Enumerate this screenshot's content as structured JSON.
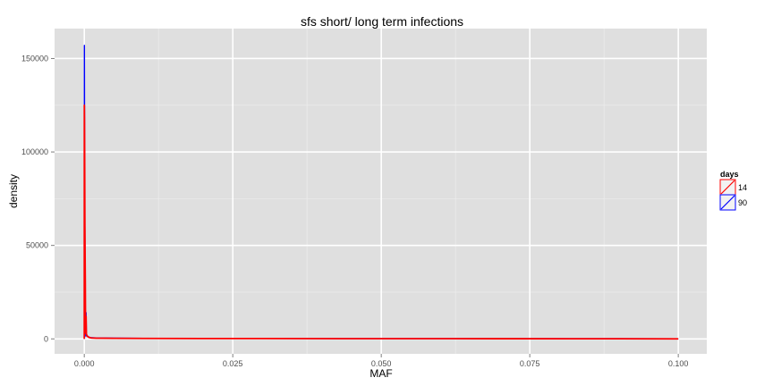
{
  "chart_data": {
    "type": "line",
    "title": "sfs short/ long term infections",
    "xlabel": "MAF",
    "ylabel": "density",
    "xlim": [
      -0.005,
      0.1048
    ],
    "ylim": [
      -8000,
      166000
    ],
    "x_ticks": [
      0.0,
      0.025,
      0.05,
      0.075,
      0.1
    ],
    "x_tick_labels": [
      "0.000",
      "0.025",
      "0.050",
      "0.075",
      "0.100"
    ],
    "y_ticks": [
      0,
      50000,
      100000,
      150000
    ],
    "y_tick_labels": [
      "0",
      "50000",
      "100000",
      "150000"
    ],
    "grid": true,
    "background": "#dfdfdf",
    "legend": {
      "title": "days",
      "placement": "right",
      "entries": [
        "14",
        "90"
      ]
    },
    "series": [
      {
        "name": "14",
        "color": "#ff0000",
        "points": [
          [
            0.0,
            0
          ],
          [
            1e-05,
            125000
          ],
          [
            3e-05,
            118000
          ],
          [
            6e-05,
            98000
          ],
          [
            0.0001,
            60000
          ],
          [
            0.00013,
            46000
          ],
          [
            0.00017,
            30000
          ],
          [
            0.0002,
            12000
          ],
          [
            0.00025,
            3000
          ],
          [
            0.0003,
            12000
          ],
          [
            0.00035,
            2500
          ],
          [
            0.0005,
            1500
          ],
          [
            0.0008,
            800
          ],
          [
            0.0012,
            500
          ],
          [
            0.002,
            400
          ],
          [
            0.005,
            300
          ],
          [
            0.01,
            250
          ],
          [
            0.02,
            200
          ],
          [
            0.03,
            170
          ],
          [
            0.05,
            130
          ],
          [
            0.07,
            100
          ],
          [
            0.09,
            60
          ],
          [
            0.1,
            0
          ]
        ]
      },
      {
        "name": "90",
        "color": "#0000ff",
        "points": [
          [
            0.0,
            0
          ],
          [
            2e-05,
            157000
          ],
          [
            5e-05,
            105000
          ],
          [
            0.0001,
            55000
          ],
          [
            0.00015,
            25000
          ],
          [
            0.0002,
            8000
          ],
          [
            0.00025,
            1500
          ],
          [
            0.0003,
            14000
          ],
          [
            0.00035,
            2000
          ],
          [
            0.0006,
            1200
          ],
          [
            0.001,
            700
          ],
          [
            0.002,
            500
          ],
          [
            0.005,
            400
          ],
          [
            0.01,
            300
          ],
          [
            0.02,
            250
          ],
          [
            0.03,
            200
          ],
          [
            0.05,
            150
          ],
          [
            0.07,
            120
          ],
          [
            0.09,
            80
          ],
          [
            0.1,
            0
          ]
        ]
      }
    ]
  }
}
